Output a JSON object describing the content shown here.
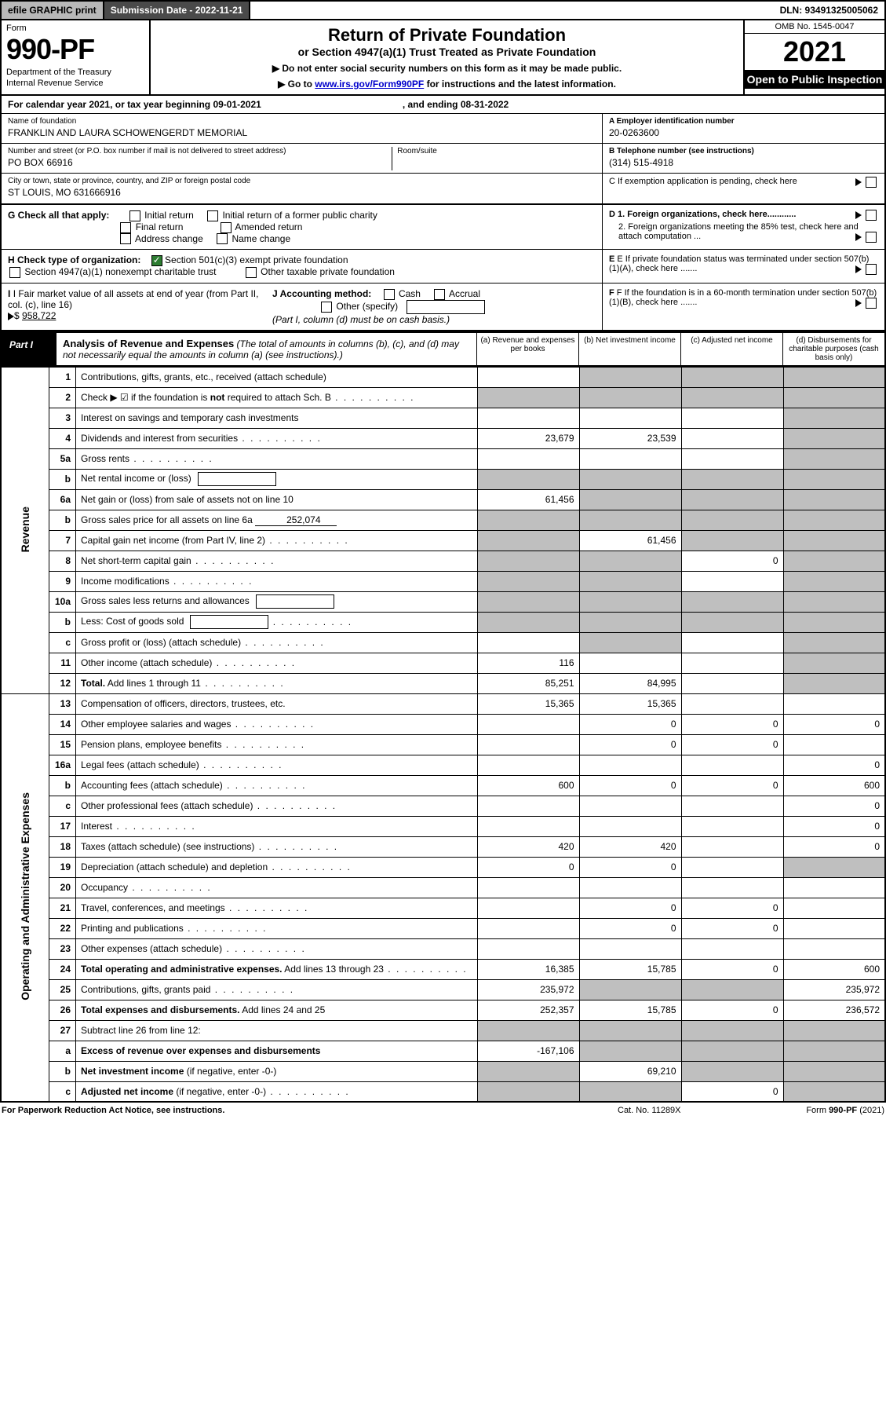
{
  "topbar": {
    "efile": "efile GRAPHIC print",
    "subdate_label": "Submission Date - 2022-11-21",
    "dln": "DLN: 93491325005062"
  },
  "header": {
    "form_word": "Form",
    "form_num": "990-PF",
    "dept": "Department of the Treasury",
    "irs": "Internal Revenue Service",
    "title": "Return of Private Foundation",
    "subtitle": "or Section 4947(a)(1) Trust Treated as Private Foundation",
    "note1": "▶ Do not enter social security numbers on this form as it may be made public.",
    "note2_pre": "▶ Go to ",
    "note2_link": "www.irs.gov/Form990PF",
    "note2_post": " for instructions and the latest information.",
    "omb": "OMB No. 1545-0047",
    "year": "2021",
    "open": "Open to Public Inspection"
  },
  "calyear": {
    "pre": "For calendar year 2021, or tax year beginning 09-01-2021",
    "post": ", and ending 08-31-2022"
  },
  "id": {
    "name_lbl": "Name of foundation",
    "name_val": "FRANKLIN AND LAURA SCHOWENGERDT MEMORIAL",
    "addr_lbl": "Number and street (or P.O. box number if mail is not delivered to street address)",
    "room_lbl": "Room/suite",
    "addr_val": "PO BOX 66916",
    "city_lbl": "City or town, state or province, country, and ZIP or foreign postal code",
    "city_val": "ST LOUIS, MO  631666916",
    "a_lbl": "A Employer identification number",
    "a_val": "20-0263600",
    "b_lbl": "B Telephone number (see instructions)",
    "b_val": "(314) 515-4918",
    "c_lbl": "C If exemption application is pending, check here"
  },
  "checks": {
    "g_lbl": "G Check all that apply:",
    "g_opts": [
      "Initial return",
      "Initial return of a former public charity",
      "Final return",
      "Amended return",
      "Address change",
      "Name change"
    ],
    "d1": "D 1. Foreign organizations, check here............",
    "d2": "2. Foreign organizations meeting the 85% test, check here and attach computation ...",
    "h_lbl": "H Check type of organization:",
    "h1": "Section 501(c)(3) exempt private foundation",
    "h2": "Section 4947(a)(1) nonexempt charitable trust",
    "h3": "Other taxable private foundation",
    "e_lbl": "E  If private foundation status was terminated under section 507(b)(1)(A), check here .......",
    "i_lbl": "I Fair market value of all assets at end of year (from Part II, col. (c), line 16)",
    "i_val": "958,722",
    "j_lbl": "J Accounting method:",
    "j_opts": [
      "Cash",
      "Accrual"
    ],
    "j_other": "Other (specify)",
    "j_note": "(Part I, column (d) must be on cash basis.)",
    "f_lbl": "F  If the foundation is in a 60-month termination under section 507(b)(1)(B), check here ......."
  },
  "part1": {
    "tag": "Part I",
    "title_b": "Analysis of Revenue and Expenses",
    "title_i": " (The total of amounts in columns (b), (c), and (d) may not necessarily equal the amounts in column (a) (see instructions).)",
    "col_a": "(a)   Revenue and expenses per books",
    "col_b": "(b)   Net investment income",
    "col_c": "(c)   Adjusted net income",
    "col_d": "(d)  Disbursements for charitable purposes (cash basis only)"
  },
  "sides": {
    "rev": "Revenue",
    "ops": "Operating and Administrative Expenses"
  },
  "rows": [
    {
      "n": "1",
      "d": "Contributions, gifts, grants, etc., received (attach schedule)",
      "a": "",
      "b": "g",
      "c": "g",
      "dd": "g"
    },
    {
      "n": "2",
      "d": "Check ▶ ☑ if the foundation is <b>not</b> required to attach Sch. B",
      "dot": true,
      "a": "g",
      "b": "g",
      "c": "g",
      "dd": "g"
    },
    {
      "n": "3",
      "d": "Interest on savings and temporary cash investments",
      "a": "",
      "b": "",
      "c": "",
      "dd": "g"
    },
    {
      "n": "4",
      "d": "Dividends and interest from securities",
      "dot": true,
      "a": "23,679",
      "b": "23,539",
      "c": "",
      "dd": "g"
    },
    {
      "n": "5a",
      "d": "Gross rents",
      "dot": true,
      "a": "",
      "b": "",
      "c": "",
      "dd": "g"
    },
    {
      "n": "b",
      "d": "Net rental income or (loss)",
      "box": true,
      "a": "g",
      "b": "g",
      "c": "g",
      "dd": "g"
    },
    {
      "n": "6a",
      "d": "Net gain or (loss) from sale of assets not on line 10",
      "a": "61,456",
      "b": "g",
      "c": "g",
      "dd": "g"
    },
    {
      "n": "b",
      "d": "Gross sales price for all assets on line 6a",
      "uval": "252,074",
      "a": "g",
      "b": "g",
      "c": "g",
      "dd": "g"
    },
    {
      "n": "7",
      "d": "Capital gain net income (from Part IV, line 2)",
      "dot": true,
      "a": "g",
      "b": "61,456",
      "c": "g",
      "dd": "g"
    },
    {
      "n": "8",
      "d": "Net short-term capital gain",
      "dot": true,
      "a": "g",
      "b": "g",
      "c": "0",
      "dd": "g"
    },
    {
      "n": "9",
      "d": "Income modifications",
      "dot": true,
      "a": "g",
      "b": "g",
      "c": "",
      "dd": "g"
    },
    {
      "n": "10a",
      "d": "Gross sales less returns and allowances",
      "box": true,
      "a": "g",
      "b": "g",
      "c": "g",
      "dd": "g"
    },
    {
      "n": "b",
      "d": "Less: Cost of goods sold",
      "dot": true,
      "box": true,
      "a": "g",
      "b": "g",
      "c": "g",
      "dd": "g"
    },
    {
      "n": "c",
      "d": "Gross profit or (loss) (attach schedule)",
      "dot": true,
      "a": "",
      "b": "g",
      "c": "",
      "dd": "g"
    },
    {
      "n": "11",
      "d": "Other income (attach schedule)",
      "dot": true,
      "a": "116",
      "b": "",
      "c": "",
      "dd": "g"
    },
    {
      "n": "12",
      "d": "<b>Total.</b> Add lines 1 through 11",
      "dot": true,
      "a": "85,251",
      "b": "84,995",
      "c": "",
      "dd": "g"
    },
    {
      "n": "13",
      "d": "Compensation of officers, directors, trustees, etc.",
      "a": "15,365",
      "b": "15,365",
      "c": "",
      "dd": ""
    },
    {
      "n": "14",
      "d": "Other employee salaries and wages",
      "dot": true,
      "a": "",
      "b": "0",
      "c": "0",
      "dd": "0"
    },
    {
      "n": "15",
      "d": "Pension plans, employee benefits",
      "dot": true,
      "a": "",
      "b": "0",
      "c": "0",
      "dd": ""
    },
    {
      "n": "16a",
      "d": "Legal fees (attach schedule)",
      "dot": true,
      "a": "",
      "b": "",
      "c": "",
      "dd": "0"
    },
    {
      "n": "b",
      "d": "Accounting fees (attach schedule)",
      "dot": true,
      "a": "600",
      "b": "0",
      "c": "0",
      "dd": "600"
    },
    {
      "n": "c",
      "d": "Other professional fees (attach schedule)",
      "dot": true,
      "a": "",
      "b": "",
      "c": "",
      "dd": "0"
    },
    {
      "n": "17",
      "d": "Interest",
      "dot": true,
      "a": "",
      "b": "",
      "c": "",
      "dd": "0"
    },
    {
      "n": "18",
      "d": "Taxes (attach schedule) (see instructions)",
      "dot": true,
      "a": "420",
      "b": "420",
      "c": "",
      "dd": "0"
    },
    {
      "n": "19",
      "d": "Depreciation (attach schedule) and depletion",
      "dot": true,
      "a": "0",
      "b": "0",
      "c": "",
      "dd": "g"
    },
    {
      "n": "20",
      "d": "Occupancy",
      "dot": true,
      "a": "",
      "b": "",
      "c": "",
      "dd": ""
    },
    {
      "n": "21",
      "d": "Travel, conferences, and meetings",
      "dot": true,
      "a": "",
      "b": "0",
      "c": "0",
      "dd": ""
    },
    {
      "n": "22",
      "d": "Printing and publications",
      "dot": true,
      "a": "",
      "b": "0",
      "c": "0",
      "dd": ""
    },
    {
      "n": "23",
      "d": "Other expenses (attach schedule)",
      "dot": true,
      "a": "",
      "b": "",
      "c": "",
      "dd": ""
    },
    {
      "n": "24",
      "d": "<b>Total operating and administrative expenses.</b> Add lines 13 through 23",
      "dot": true,
      "a": "16,385",
      "b": "15,785",
      "c": "0",
      "dd": "600"
    },
    {
      "n": "25",
      "d": "Contributions, gifts, grants paid",
      "dot": true,
      "a": "235,972",
      "b": "g",
      "c": "g",
      "dd": "235,972"
    },
    {
      "n": "26",
      "d": "<b>Total expenses and disbursements.</b> Add lines 24 and 25",
      "a": "252,357",
      "b": "15,785",
      "c": "0",
      "dd": "236,572"
    },
    {
      "n": "27",
      "d": "Subtract line 26 from line 12:",
      "a": "g",
      "b": "g",
      "c": "g",
      "dd": "g"
    },
    {
      "n": "a",
      "d": "<b>Excess of revenue over expenses and disbursements</b>",
      "a": "-167,106",
      "b": "g",
      "c": "g",
      "dd": "g"
    },
    {
      "n": "b",
      "d": "<b>Net investment income</b> (if negative, enter -0-)",
      "a": "g",
      "b": "69,210",
      "c": "g",
      "dd": "g"
    },
    {
      "n": "c",
      "d": "<b>Adjusted net income</b> (if negative, enter -0-)",
      "dot": true,
      "a": "g",
      "b": "g",
      "c": "0",
      "dd": "g"
    }
  ],
  "footer": {
    "l": "For Paperwork Reduction Act Notice, see instructions.",
    "m": "Cat. No. 11289X",
    "r": "Form 990-PF (2021)"
  },
  "colors": {
    "grey": "#bfbfbf",
    "darkbar": "#4a4a4a",
    "green": "#2e7d32"
  }
}
